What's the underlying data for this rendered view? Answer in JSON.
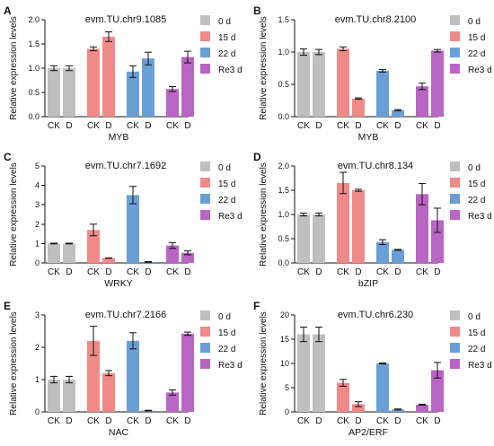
{
  "chart_data": [
    {
      "type": "bar",
      "panel": "A",
      "title": "evm.TU.chr9.1085",
      "xlabel": "MYB",
      "ylabel": "Relative expression levels",
      "ylim": [
        0,
        2.0
      ],
      "yticks": [
        0.0,
        0.5,
        1.0,
        1.5,
        2.0
      ],
      "categories": [
        "CK",
        "D",
        "CK",
        "D",
        "CK",
        "D",
        "CK",
        "D"
      ],
      "groups": [
        "0 d",
        "15 d",
        "22 d",
        "Re3 d"
      ],
      "values": [
        1.0,
        1.0,
        1.4,
        1.65,
        0.93,
        1.2,
        0.57,
        1.23
      ],
      "errors": [
        0.05,
        0.05,
        0.04,
        0.1,
        0.12,
        0.13,
        0.05,
        0.12
      ]
    },
    {
      "type": "bar",
      "panel": "B",
      "title": "evm.TU.chr8.2100",
      "xlabel": "MYB",
      "ylabel": "Relative expression levels",
      "ylim": [
        0,
        1.5
      ],
      "yticks": [
        0.0,
        0.5,
        1.0,
        1.5
      ],
      "categories": [
        "CK",
        "D",
        "CK",
        "D",
        "CK",
        "D",
        "CK",
        "D"
      ],
      "groups": [
        "0 d",
        "15 d",
        "22 d",
        "Re3 d"
      ],
      "values": [
        1.0,
        1.0,
        1.05,
        0.28,
        0.71,
        0.1,
        0.47,
        1.02
      ],
      "errors": [
        0.05,
        0.04,
        0.03,
        0.01,
        0.02,
        0.01,
        0.05,
        0.02
      ]
    },
    {
      "type": "bar",
      "panel": "C",
      "title": "evm.TU.chr7.1692",
      "xlabel": "WRKY",
      "ylabel": "Relative expression levels",
      "ylim": [
        0,
        5
      ],
      "yticks": [
        0,
        1,
        2,
        3,
        4,
        5
      ],
      "categories": [
        "CK",
        "D",
        "CK",
        "D",
        "CK",
        "D",
        "CK",
        "D"
      ],
      "groups": [
        "0 d",
        "15 d",
        "22 d",
        "Re3 d"
      ],
      "values": [
        1.0,
        1.0,
        1.7,
        0.25,
        3.5,
        0.05,
        0.9,
        0.52
      ],
      "errors": [
        0.02,
        0.02,
        0.3,
        0.01,
        0.45,
        0.02,
        0.15,
        0.1
      ]
    },
    {
      "type": "bar",
      "panel": "D",
      "title": "evm.TU.chr8.134",
      "xlabel": "bZIP",
      "ylabel": "Relative expression levels",
      "ylim": [
        0,
        2.0
      ],
      "yticks": [
        0.0,
        0.5,
        1.0,
        1.5,
        2.0
      ],
      "categories": [
        "CK",
        "D",
        "CK",
        "D",
        "CK",
        "D",
        "CK",
        "D"
      ],
      "groups": [
        "0 d",
        "15 d",
        "22 d",
        "Re3 d"
      ],
      "values": [
        1.0,
        1.0,
        1.65,
        1.5,
        0.43,
        0.27,
        1.42,
        0.88
      ],
      "errors": [
        0.03,
        0.03,
        0.22,
        0.02,
        0.05,
        0.01,
        0.22,
        0.25
      ]
    },
    {
      "type": "bar",
      "panel": "E",
      "title": "evm.TU.chr7.2166",
      "xlabel": "NAC",
      "ylabel": "Relative expression levels",
      "ylim": [
        0,
        3
      ],
      "yticks": [
        0,
        1,
        2,
        3
      ],
      "categories": [
        "CK",
        "D",
        "CK",
        "D",
        "CK",
        "D",
        "CK",
        "D"
      ],
      "groups": [
        "0 d",
        "15 d",
        "22 d",
        "Re3 d"
      ],
      "values": [
        1.0,
        1.0,
        2.2,
        1.2,
        2.2,
        0.04,
        0.6,
        2.42
      ],
      "errors": [
        0.1,
        0.1,
        0.45,
        0.08,
        0.25,
        0.01,
        0.08,
        0.05
      ]
    },
    {
      "type": "bar",
      "panel": "F",
      "title": "evm.TU.chr6.230",
      "xlabel": "AP2/ERF",
      "ylabel": "Relative expression levels",
      "ylim": [
        0,
        20
      ],
      "yticks": [
        0,
        5,
        10,
        15,
        20
      ],
      "categories": [
        "CK",
        "D",
        "CK",
        "D",
        "CK",
        "D",
        "CK",
        "D"
      ],
      "groups": [
        "0 d",
        "15 d",
        "22 d",
        "Re3 d"
      ],
      "values": [
        16.0,
        16.0,
        6.0,
        1.6,
        10.0,
        0.5,
        1.5,
        8.6
      ],
      "errors": [
        1.5,
        1.5,
        0.7,
        0.5,
        0.1,
        0.1,
        0.1,
        1.6
      ]
    }
  ],
  "colors": {
    "0 d": "#bfbfbf",
    "15 d": "#ef8a88",
    "22 d": "#6a9fd6",
    "Re3 d": "#b865c4"
  }
}
